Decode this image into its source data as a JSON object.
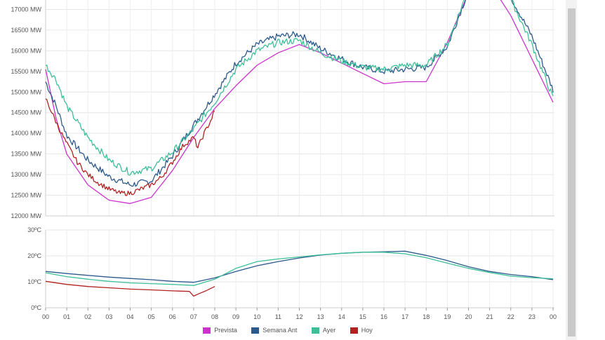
{
  "chart_data": [
    {
      "type": "line",
      "ylim": [
        12000,
        17500
      ],
      "y_ticks": [
        12000,
        12500,
        13000,
        13500,
        14000,
        14500,
        15000,
        15500,
        16000,
        16500,
        17000
      ],
      "y_tick_labels": [
        "12000 MW",
        "12500 MW",
        "13000 MW",
        "13500 MW",
        "14000 MW",
        "14500 MW",
        "15000 MW",
        "15500 MW",
        "16000 MW",
        "16500 MW",
        "17000 MW"
      ],
      "xlim": [
        0,
        24
      ],
      "grid": true,
      "series": [
        {
          "name": "Prevista",
          "color": "#cc33cc",
          "x": [
            0,
            0.5,
            1,
            2,
            3,
            4,
            5,
            6,
            7,
            8,
            9,
            10,
            11,
            12,
            13,
            14,
            15,
            16,
            17,
            18,
            19,
            20,
            21,
            22,
            23,
            24
          ],
          "y": [
            15550,
            14350,
            13500,
            12750,
            12380,
            12300,
            12450,
            13100,
            13900,
            14600,
            15150,
            15650,
            15950,
            16150,
            15950,
            15700,
            15450,
            15200,
            15250,
            15250,
            16200,
            17400,
            17650,
            16850,
            15800,
            14750
          ],
          "noise": 0
        },
        {
          "name": "Semana Ant",
          "color": "#2d5a8c",
          "x": [
            0,
            0.5,
            1,
            2,
            3,
            4,
            5,
            6,
            7,
            8,
            9,
            10,
            11,
            12,
            13,
            14,
            15,
            16,
            17,
            18,
            19,
            20,
            21,
            22,
            23,
            24
          ],
          "y": [
            15250,
            14650,
            13950,
            13350,
            12950,
            12750,
            12850,
            13450,
            14200,
            14950,
            15700,
            16150,
            16350,
            16400,
            16050,
            15800,
            15600,
            15500,
            15550,
            15600,
            16100,
            17450,
            17750,
            17300,
            16350,
            15050
          ],
          "noise": 80
        },
        {
          "name": "Ayer",
          "color": "#3dbf9a",
          "x": [
            0,
            0.5,
            1,
            2,
            3,
            4,
            5,
            6,
            7,
            8,
            9,
            10,
            11,
            12,
            13,
            14,
            15,
            16,
            17,
            18,
            19,
            20,
            21,
            22,
            23,
            24
          ],
          "y": [
            15650,
            15300,
            14650,
            13900,
            13350,
            13050,
            13150,
            13550,
            14100,
            14750,
            15550,
            16000,
            16200,
            16250,
            15950,
            15750,
            15600,
            15550,
            15650,
            15650,
            16150,
            17500,
            17800,
            17250,
            16150,
            14850
          ],
          "noise": 80
        },
        {
          "name": "Hoy",
          "color": "#b22222",
          "x": [
            0,
            0.3,
            0.6,
            1,
            1.5,
            2,
            2.5,
            3,
            3.5,
            4,
            4.5,
            5,
            5.5,
            6,
            6.5,
            7,
            7.2,
            7.5,
            7.8,
            8
          ],
          "y": [
            14850,
            14500,
            14150,
            13750,
            13300,
            13000,
            12800,
            12650,
            12550,
            12550,
            12650,
            12750,
            12950,
            13300,
            13700,
            13900,
            13650,
            14000,
            14300,
            14550
          ],
          "noise": 60
        }
      ]
    },
    {
      "type": "line",
      "ylim": [
        0,
        30
      ],
      "y_ticks": [
        0,
        10,
        20,
        30
      ],
      "y_tick_labels": [
        "0ºC",
        "10ºC",
        "20ºC",
        "30ºC"
      ],
      "xlim": [
        0,
        24
      ],
      "x_tick_values": [
        0,
        1,
        2,
        3,
        4,
        5,
        6,
        7,
        8,
        9,
        10,
        11,
        12,
        13,
        14,
        15,
        16,
        17,
        18,
        19,
        20,
        21,
        22,
        23,
        24
      ],
      "x_tick_labels": [
        "00",
        "01",
        "02",
        "03",
        "04",
        "05",
        "06",
        "07",
        "08",
        "09",
        "10",
        "11",
        "12",
        "13",
        "14",
        "15",
        "16",
        "17",
        "18",
        "19",
        "20",
        "21",
        "22",
        "23",
        "00"
      ],
      "grid": true,
      "series": [
        {
          "name": "Semana Ant",
          "color": "#2d5a8c",
          "x": [
            0,
            1,
            2,
            3,
            4,
            5,
            6,
            7,
            8,
            9,
            10,
            11,
            12,
            13,
            14,
            15,
            16,
            17,
            18,
            19,
            20,
            21,
            22,
            23,
            24
          ],
          "y": [
            14,
            13.2,
            12.5,
            11.8,
            11.3,
            10.8,
            10.2,
            9.8,
            11.5,
            14,
            16.2,
            17.8,
            19.2,
            20.3,
            21,
            21.4,
            21.6,
            21.8,
            20.2,
            18.2,
            15.8,
            14,
            12.8,
            12,
            10.8
          ]
        },
        {
          "name": "Ayer",
          "color": "#3dbf9a",
          "x": [
            0,
            1,
            2,
            3,
            4,
            5,
            6,
            7,
            8,
            9,
            10,
            11,
            12,
            13,
            14,
            15,
            16,
            17,
            18,
            19,
            20,
            21,
            22,
            23,
            24
          ],
          "y": [
            13.5,
            12,
            11,
            10.2,
            9.6,
            9.3,
            9,
            8.6,
            11,
            15.2,
            17.8,
            18.8,
            19.6,
            20.4,
            21,
            21.4,
            21.4,
            20.8,
            19.3,
            17.2,
            15.2,
            13.6,
            12.2,
            11.6,
            11.2
          ]
        },
        {
          "name": "Hoy",
          "color": "#b22222",
          "x": [
            0,
            1,
            2,
            3,
            4,
            5,
            6,
            6.8,
            7,
            7.3,
            7.6,
            8
          ],
          "y": [
            10.2,
            9,
            8.2,
            7.7,
            7.2,
            6.9,
            6.5,
            6.3,
            4.5,
            5.6,
            6.6,
            8.2
          ]
        }
      ]
    }
  ],
  "legend": {
    "items": [
      {
        "label": "Prevista",
        "color": "#cc33cc"
      },
      {
        "label": "Semana Ant",
        "color": "#2d5a8c"
      },
      {
        "label": "Ayer",
        "color": "#3dbf9a"
      },
      {
        "label": "Hoy",
        "color": "#b22222"
      }
    ]
  }
}
